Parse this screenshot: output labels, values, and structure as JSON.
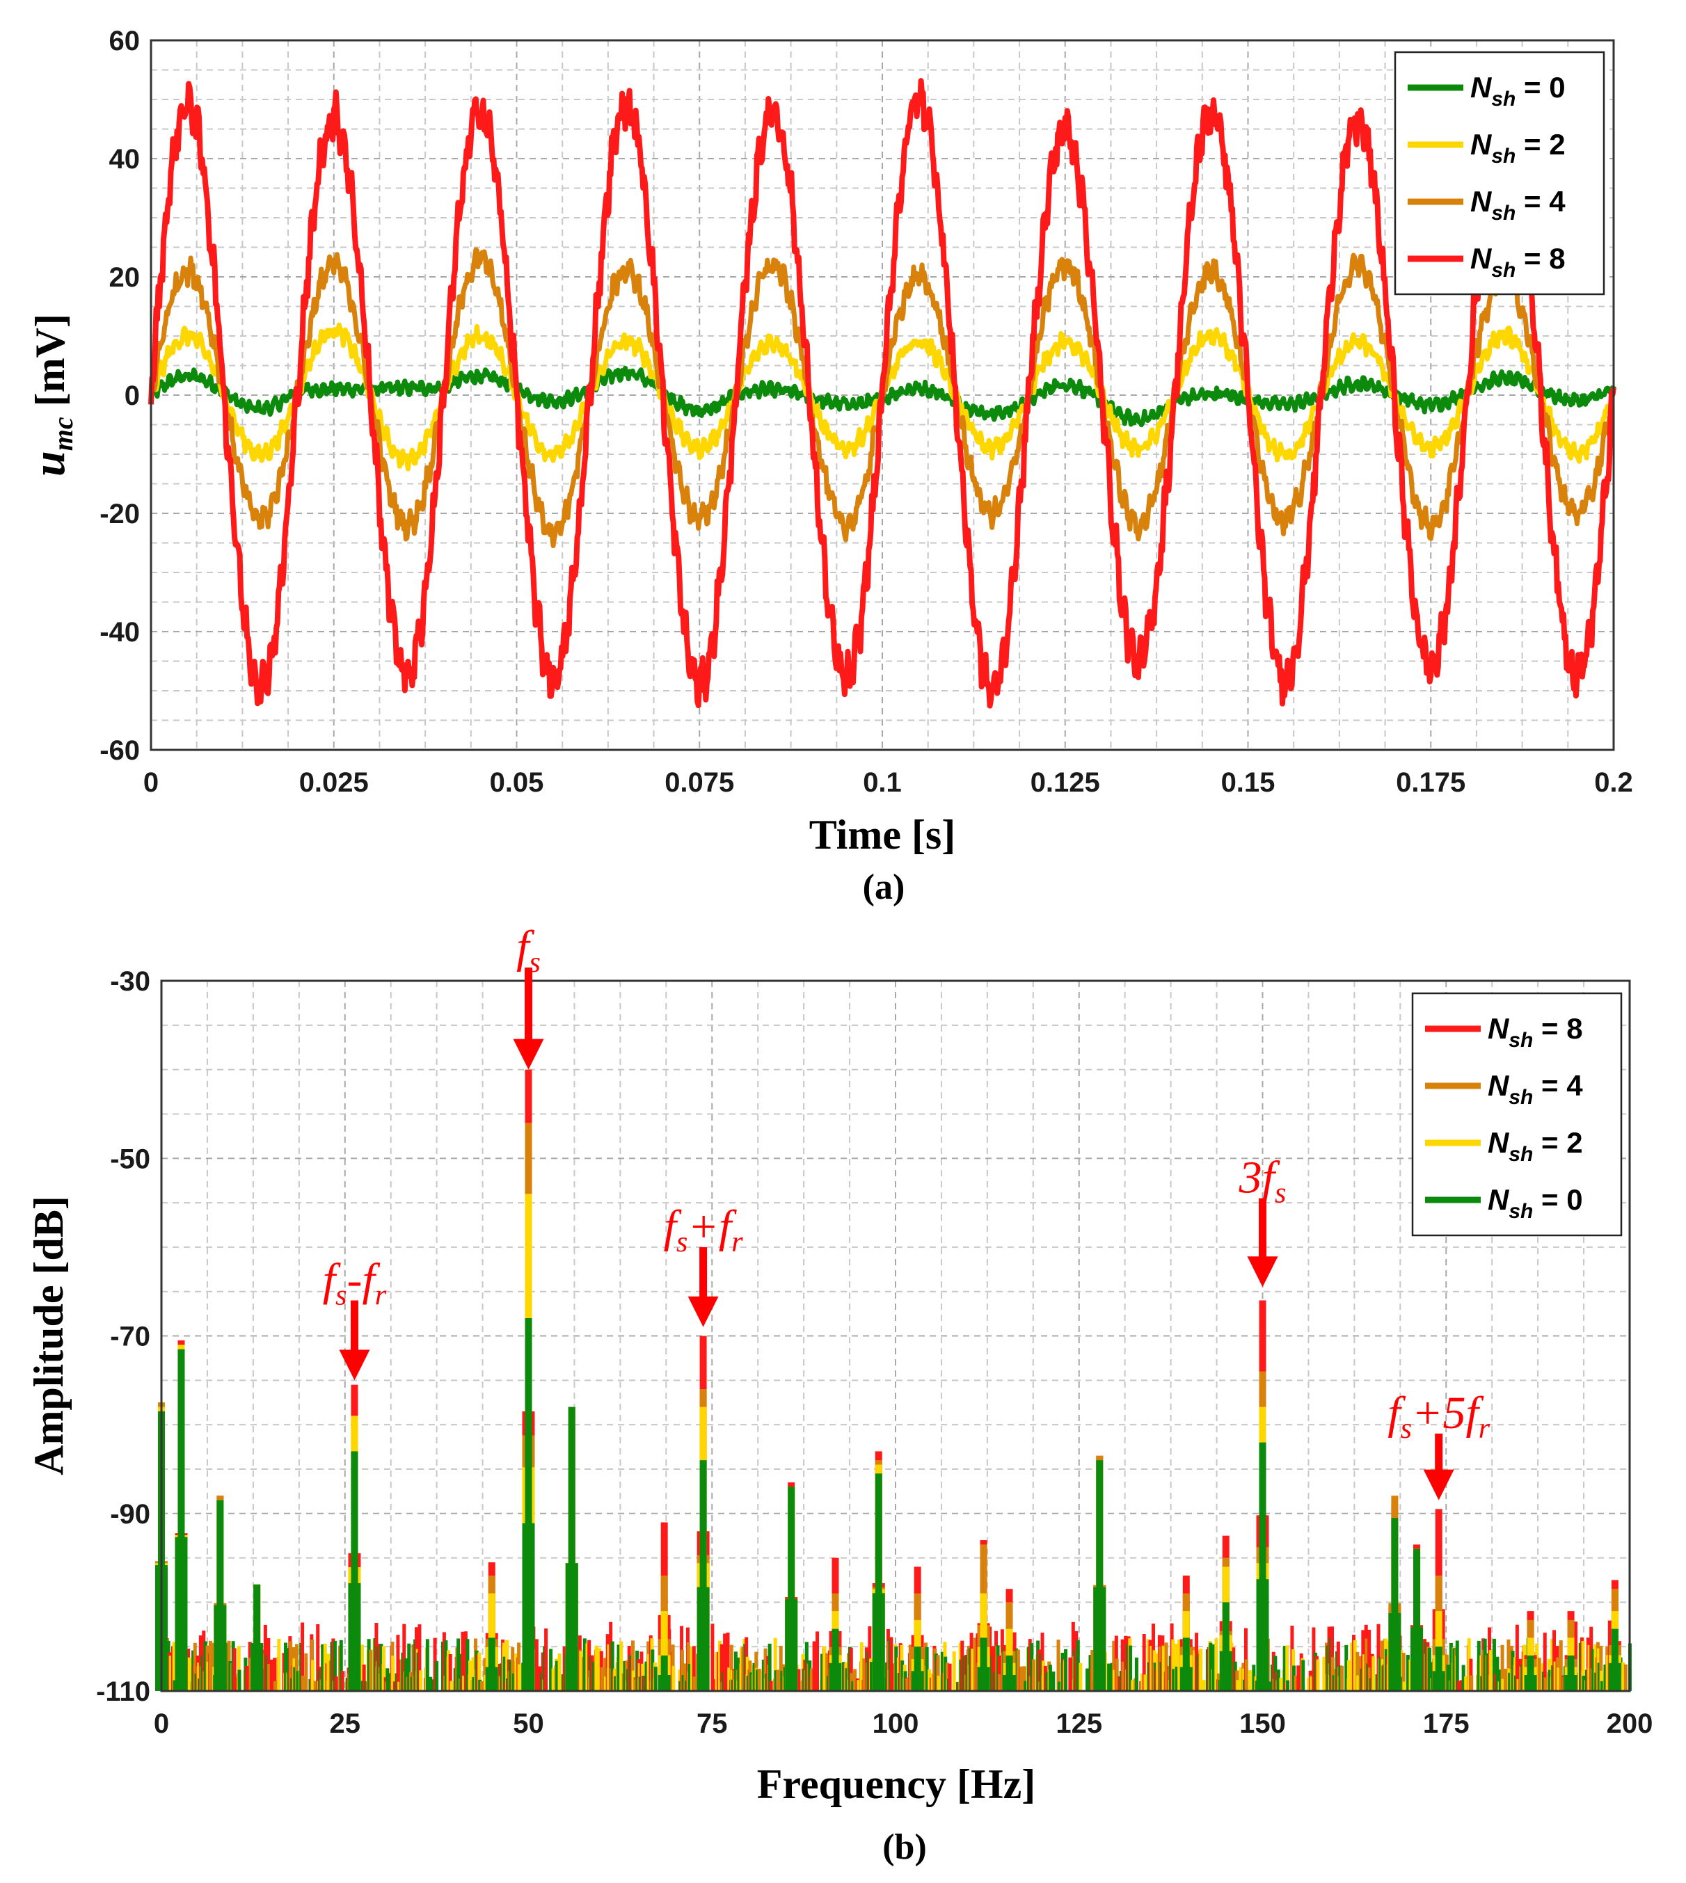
{
  "chart_data": [
    {
      "type": "line",
      "caption": "(a)",
      "xlabel": "Time [s]",
      "ylabel_main": "u",
      "ylabel_sub": "mc",
      "ylabel_unit": " [mV]",
      "xlim": [
        0,
        0.2
      ],
      "ylim": [
        -60,
        60
      ],
      "x_ticks": [
        0,
        0.025,
        0.05,
        0.075,
        0.1,
        0.125,
        0.15,
        0.175,
        0.2
      ],
      "x_tick_labels": [
        "0",
        "0.025",
        "0.05",
        "0.075",
        "0.1",
        "0.125",
        "0.15",
        "0.175",
        "0.2"
      ],
      "y_ticks": [
        -60,
        -40,
        -20,
        0,
        20,
        40,
        60
      ],
      "y_tick_labels": [
        "-60",
        "-40",
        "-20",
        "0",
        "20",
        "40",
        "60"
      ],
      "grid": true,
      "legend_position": "top-right",
      "fundamental_hz": 50,
      "series": [
        {
          "name": "N_sh = 0",
          "label_main": "N",
          "label_sub": "sh",
          "label_eq": " = 0",
          "color": "#0b8a0b",
          "amplitude": [
            3,
            0,
            2,
            3,
            1,
            2,
            3,
            1,
            2,
            2
          ]
        },
        {
          "name": "N_sh = 2",
          "label_main": "N",
          "label_sub": "sh",
          "label_eq": " = 2",
          "color": "#ffd700",
          "amplitude": [
            10,
            11,
            10,
            9,
            9,
            9,
            9,
            10,
            9,
            10
          ]
        },
        {
          "name": "N_sh = 4",
          "label_main": "N",
          "label_sub": "sh",
          "label_eq": " = 4",
          "color": "#d9820b",
          "amplitude": [
            21,
            22,
            23,
            21,
            22,
            20,
            22,
            21,
            22,
            20
          ]
        },
        {
          "name": "N_sh = 8",
          "label_main": "N",
          "label_sub": "sh",
          "label_eq": " = 8",
          "color": "#ff1a1a",
          "amplitude": [
            49,
            47,
            48,
            49,
            48,
            50,
            45,
            48,
            46,
            47
          ]
        }
      ]
    },
    {
      "type": "bar",
      "caption": "(b)",
      "xlabel": "Frequency [Hz]",
      "ylabel": "Amplitude [dB]",
      "xlim": [
        0,
        200
      ],
      "ylim": [
        -110,
        -30
      ],
      "x_ticks": [
        0,
        25,
        50,
        75,
        100,
        125,
        150,
        175,
        200
      ],
      "x_tick_labels": [
        "0",
        "25",
        "50",
        "75",
        "100",
        "125",
        "150",
        "175",
        "200"
      ],
      "y_ticks": [
        -110,
        -90,
        -70,
        -50,
        -30
      ],
      "y_tick_labels": [
        "-110",
        "-90",
        "-70",
        "-50",
        "-30"
      ],
      "grid": true,
      "legend_position": "top-right",
      "series": [
        {
          "name": "N_sh = 8",
          "label_main": "N",
          "label_sub": "sh",
          "label_eq": " = 8",
          "color": "#ff1a1a"
        },
        {
          "name": "N_sh = 4",
          "label_main": "N",
          "label_sub": "sh",
          "label_eq": " = 4",
          "color": "#d9820b"
        },
        {
          "name": "N_sh = 2",
          "label_main": "N",
          "label_sub": "sh",
          "label_eq": " = 2",
          "color": "#ffd700"
        },
        {
          "name": "N_sh = 0",
          "label_main": "N",
          "label_sub": "sh",
          "label_eq": " = 0",
          "color": "#0b8a0b"
        }
      ],
      "peaks": [
        {
          "f": 0,
          "v": [
            -77.5,
            -77.5,
            -78,
            -78.5
          ]
        },
        {
          "f": 2.7,
          "v": [
            -70.5,
            -71,
            -71,
            -71.5
          ]
        },
        {
          "f": 8,
          "v": [
            -88,
            -88,
            -88.5,
            -88.5
          ]
        },
        {
          "f": 13,
          "v": [
            -98,
            -98,
            -98,
            -98
          ]
        },
        {
          "f": 26.3,
          "v": [
            -75.5,
            -79,
            -79,
            -83
          ]
        },
        {
          "f": 45,
          "v": [
            -95.5,
            -97,
            -99,
            -104
          ]
        },
        {
          "f": 50,
          "v": [
            -40,
            -46,
            -54,
            -68
          ]
        },
        {
          "f": 55.9,
          "v": [
            -78,
            -78,
            -78,
            -78
          ]
        },
        {
          "f": 68.5,
          "v": [
            -91,
            -97,
            -101,
            -106
          ]
        },
        {
          "f": 73.8,
          "v": [
            -70,
            -76,
            -78,
            -84
          ]
        },
        {
          "f": 85.8,
          "v": [
            -86.5,
            -87,
            -87,
            -87
          ]
        },
        {
          "f": 91.8,
          "v": [
            -95,
            -99,
            -101,
            -103
          ]
        },
        {
          "f": 97.7,
          "v": [
            -83,
            -84,
            -84.5,
            -85.5
          ]
        },
        {
          "f": 103,
          "v": [
            -96,
            -99,
            -102,
            -105
          ]
        },
        {
          "f": 112,
          "v": [
            -93,
            -93.5,
            -99,
            -104
          ]
        },
        {
          "f": 115.5,
          "v": [
            -98.5,
            -100,
            -103,
            -106
          ]
        },
        {
          "f": 127.8,
          "v": [
            -83.5,
            -83.5,
            -84,
            -84
          ]
        },
        {
          "f": 139.6,
          "v": [
            -97,
            -99,
            -101,
            -104
          ]
        },
        {
          "f": 145,
          "v": [
            -92.5,
            -95,
            -96,
            -100
          ]
        },
        {
          "f": 150,
          "v": [
            -66,
            -74,
            -78,
            -82
          ]
        },
        {
          "f": 168,
          "v": [
            -89,
            -88,
            -93,
            -90.5
          ]
        },
        {
          "f": 171,
          "v": [
            -93.5,
            -94,
            -94,
            -94
          ]
        },
        {
          "f": 174,
          "v": [
            -89.5,
            -97,
            -101,
            -105
          ]
        },
        {
          "f": 186.5,
          "v": [
            -101,
            -102,
            -104,
            -106
          ]
        },
        {
          "f": 192,
          "v": [
            -101,
            -102,
            -104,
            -106
          ]
        },
        {
          "f": 198,
          "v": [
            -97.5,
            -98.5,
            -101,
            -103
          ]
        }
      ],
      "annotations": [
        {
          "parts": [
            {
              "t": "f"
            },
            {
              "t": "s",
              "sub": true
            }
          ],
          "f": 50,
          "tip_db": -40,
          "tail_db": -28.5
        },
        {
          "parts": [
            {
              "t": "f"
            },
            {
              "t": "s",
              "sub": true
            },
            {
              "t": "-f",
              "join": "-"
            },
            {
              "t": "r",
              "sub": true
            }
          ],
          "f": 26.3,
          "tip_db": -75,
          "tail_db": -66
        },
        {
          "parts": [
            {
              "t": "f"
            },
            {
              "t": "s",
              "sub": true
            },
            {
              "t": "+f",
              "join": "+"
            },
            {
              "t": "r",
              "sub": true
            }
          ],
          "f": 73.8,
          "tip_db": -69,
          "tail_db": -60
        },
        {
          "parts": [
            {
              "t": "3f"
            },
            {
              "t": "s",
              "sub": true
            }
          ],
          "f": 150,
          "tip_db": -64.5,
          "tail_db": -54.5
        },
        {
          "parts": [
            {
              "t": "f"
            },
            {
              "t": "s",
              "sub": true
            },
            {
              "t": "+5f",
              "join": "+5"
            },
            {
              "t": "r",
              "sub": true
            }
          ],
          "f": 174,
          "tip_db": -88.5,
          "tail_db": -81
        }
      ]
    }
  ]
}
